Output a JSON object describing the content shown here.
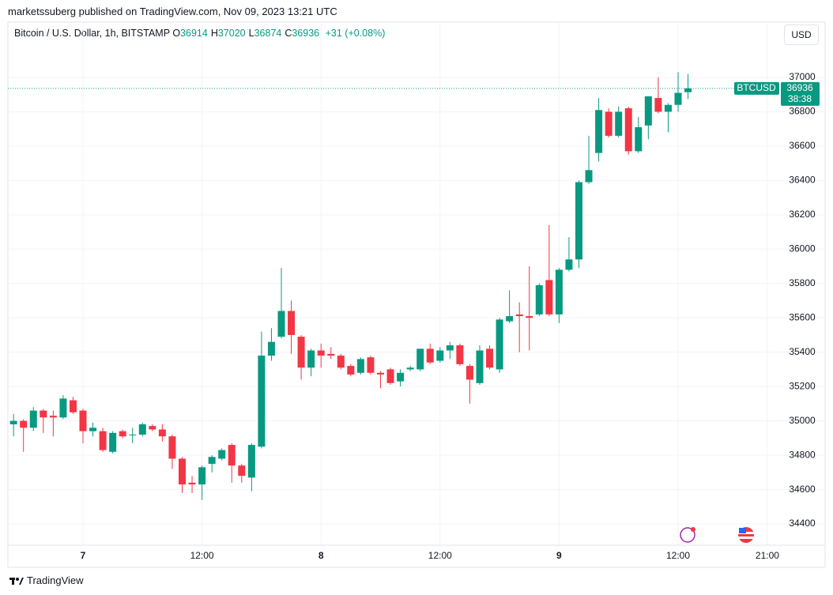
{
  "published": "marketssuberg published on TradingView.com, Nov 09, 2023 13:21 UTC",
  "header": {
    "title": "Bitcoin / U.S. Dollar, 1h, BITSTAMP",
    "ohlc": [
      {
        "key": "O",
        "value": "36914"
      },
      {
        "key": "H",
        "value": "37020"
      },
      {
        "key": "L",
        "value": "36874"
      },
      {
        "key": "C",
        "value": "36936"
      }
    ],
    "change": "+31 (+0.08%)"
  },
  "currency_button": "USD",
  "price_tag": {
    "symbol": "BTCUSD",
    "countdown": "38:38"
  },
  "footer": "TradingView",
  "chart_data": {
    "type": "candlestick",
    "x": [
      -7,
      -6,
      -5,
      -4,
      -3,
      -2,
      -1,
      0,
      1,
      2,
      3,
      4,
      5,
      6,
      7,
      8,
      9,
      10,
      11,
      12,
      13,
      14,
      15,
      16,
      17,
      18,
      19,
      20,
      21,
      22,
      23,
      24,
      25,
      26,
      27,
      28,
      29,
      30,
      31,
      32,
      33,
      34,
      35,
      36,
      37,
      38,
      39,
      40,
      41,
      42,
      43,
      44,
      45,
      46,
      47,
      48,
      49,
      50,
      51,
      52,
      53,
      54,
      55,
      56,
      57,
      58,
      59,
      60,
      61
    ],
    "open": [
      34980,
      35000,
      34960,
      35060,
      35030,
      35020,
      35120,
      35060,
      34940,
      34940,
      34820,
      34940,
      34920,
      34920,
      34970,
      34950,
      34910,
      34780,
      34640,
      34630,
      34750,
      34780,
      34860,
      34740,
      34670,
      34850,
      35380,
      35490,
      35640,
      35490,
      35310,
      35410,
      35390,
      35380,
      35320,
      35280,
      35370,
      35280,
      35300,
      35230,
      35300,
      35300,
      35420,
      35350,
      35410,
      35440,
      35320,
      35220,
      35420,
      35300,
      35580,
      35620,
      35610,
      35620,
      35820,
      35620,
      35880,
      35940,
      36390,
      36560,
      36800,
      36660,
      36820,
      36570,
      36720,
      36880,
      36800,
      36840,
      36914
    ],
    "high": [
      35040,
      35010,
      35080,
      35070,
      35060,
      35150,
      35140,
      35070,
      34990,
      34960,
      34940,
      34950,
      34960,
      34990,
      34980,
      34980,
      34920,
      34790,
      34680,
      34740,
      34800,
      34840,
      34870,
      34750,
      34870,
      35520,
      35540,
      35890,
      35700,
      35500,
      35420,
      35450,
      35430,
      35390,
      35330,
      35370,
      35380,
      35290,
      35310,
      35300,
      35320,
      35420,
      35450,
      35430,
      35460,
      35450,
      35330,
      35440,
      35440,
      35600,
      35760,
      35690,
      35900,
      35800,
      36140,
      35890,
      36070,
      36400,
      36660,
      36880,
      36820,
      36830,
      36830,
      36770,
      36890,
      37000,
      36850,
      37030,
      37020
    ],
    "low": [
      34910,
      34820,
      34940,
      34930,
      34910,
      35010,
      35040,
      34870,
      34910,
      34820,
      34810,
      34900,
      34870,
      34910,
      34940,
      34880,
      34720,
      34580,
      34580,
      34540,
      34700,
      34770,
      34640,
      34640,
      34590,
      34840,
      35350,
      35480,
      35390,
      35240,
      35260,
      35310,
      35360,
      35300,
      35260,
      35270,
      35270,
      35190,
      35210,
      35200,
      35290,
      35290,
      35330,
      35340,
      35360,
      35320,
      35100,
      35210,
      35300,
      35280,
      35570,
      35400,
      35410,
      35610,
      35610,
      35570,
      35870,
      35890,
      36380,
      36510,
      36650,
      36650,
      36550,
      36560,
      36640,
      36790,
      36680,
      36800,
      36874
    ],
    "close": [
      35000,
      34960,
      35060,
      35020,
      35020,
      35130,
      35050,
      34940,
      34960,
      34830,
      34930,
      34910,
      34920,
      34980,
      34950,
      34910,
      34780,
      34630,
      34630,
      34730,
      34790,
      34830,
      34740,
      34680,
      34860,
      35380,
      35460,
      35640,
      35500,
      35310,
      35410,
      35380,
      35380,
      35310,
      35270,
      35360,
      35280,
      35270,
      35220,
      35280,
      35310,
      35420,
      35340,
      35410,
      35440,
      35330,
      35240,
      35410,
      35310,
      35590,
      35610,
      35610,
      35600,
      35790,
      35620,
      35880,
      35940,
      36390,
      36460,
      36810,
      36660,
      36800,
      36570,
      36710,
      36890,
      36800,
      36840,
      36910,
      36936
    ],
    "up_color": "#089981",
    "down_color": "#f23645",
    "last_price": 36936,
    "xlim": [
      -7.57,
      70.28
    ],
    "xticks": [
      {
        "value": 0,
        "label": "7"
      },
      {
        "value": 12,
        "label": "12:00"
      },
      {
        "value": 24,
        "label": "8"
      },
      {
        "value": 36,
        "label": "12:00"
      },
      {
        "value": 48,
        "label": "9"
      },
      {
        "value": 60,
        "label": "12:00"
      },
      {
        "value": 69,
        "label": "21:00"
      }
    ],
    "ylim": [
      34276,
      37193
    ],
    "yticks": [
      34400,
      34600,
      34800,
      35000,
      35200,
      35400,
      35600,
      35800,
      36000,
      36200,
      36400,
      36600,
      36800,
      37000
    ],
    "grid": true
  }
}
